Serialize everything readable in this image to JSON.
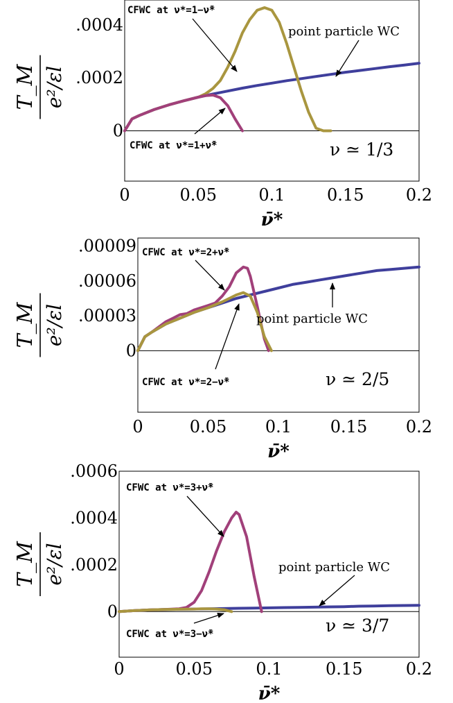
{
  "chart_data": [
    {
      "type": "line",
      "xlabel": "ν̄*",
      "ylabel": "T_M / (e²/εl)",
      "xlim": [
        0,
        0.2
      ],
      "ylim": [
        -0.00019,
        0.00052
      ],
      "xticks": [
        "0",
        "0.05",
        "0.1",
        "0.15",
        "0.2"
      ],
      "yticks": [
        {
          "value": 0,
          "label": "0"
        },
        {
          "value": 0.0002,
          "label": ".0002"
        },
        {
          "value": 0.0004,
          "label": ".0004"
        }
      ],
      "panel_label": "ν ≃ 1/3",
      "series": [
        {
          "color": "#3f3f9c",
          "x": [
            0,
            0.005,
            0.01,
            0.02,
            0.03,
            0.04,
            0.05,
            0.06,
            0.07,
            0.08,
            0.09,
            0.1,
            0.11,
            0.12,
            0.13,
            0.14,
            0.15,
            0.16,
            0.17,
            0.18,
            0.19,
            0.2
          ],
          "y": [
            0,
            4.5e-05,
            5.8e-05,
            8e-05,
            9.8e-05,
            0.000113,
            0.000127,
            0.000139,
            0.00015,
            0.000161,
            0.000171,
            0.00018,
            0.000189,
            0.000197,
            0.000205,
            0.000213,
            0.000221,
            0.000228,
            0.000235,
            0.000242,
            0.000248,
            0.000255
          ]
        },
        {
          "color": "#a9963f",
          "x": [
            0,
            0.005,
            0.01,
            0.02,
            0.03,
            0.04,
            0.05,
            0.055,
            0.06,
            0.065,
            0.07,
            0.075,
            0.08,
            0.085,
            0.09,
            0.095,
            0.1,
            0.105,
            0.11,
            0.115,
            0.12,
            0.125,
            0.13,
            0.135,
            0.14
          ],
          "y": [
            0,
            4.5e-05,
            5.8e-05,
            8e-05,
            9.8e-05,
            0.000113,
            0.000127,
            0.00014,
            0.00016,
            0.00019,
            0.00024,
            0.0003,
            0.00037,
            0.00042,
            0.000455,
            0.000465,
            0.000455,
            0.00041,
            0.00033,
            0.00024,
            0.00015,
            7e-05,
            1e-05,
            0,
            0
          ]
        },
        {
          "color": "#a1407a",
          "x": [
            0,
            0.005,
            0.01,
            0.02,
            0.03,
            0.04,
            0.05,
            0.055,
            0.06,
            0.065,
            0.07,
            0.075,
            0.08
          ],
          "y": [
            0,
            4.5e-05,
            5.8e-05,
            8e-05,
            9.8e-05,
            0.000113,
            0.000127,
            0.000133,
            0.000135,
            0.000125,
            9.5e-05,
            4.5e-05,
            0
          ]
        }
      ],
      "annotations": [
        {
          "text": "CFWC at ν*=1−ν̄*"
        },
        {
          "text": "point particle WC"
        },
        {
          "text": "CFWC at ν*=1+ν̄*"
        }
      ]
    },
    {
      "type": "line",
      "xlabel": "ν̄*",
      "ylabel": "T_M / (e²/εl)",
      "xlim": [
        0,
        0.2
      ],
      "ylim": [
        -5.3e-05,
        9.7e-05
      ],
      "xticks": [
        "0",
        "0.05",
        "0.1",
        "0.15",
        "0.2"
      ],
      "yticks": [
        {
          "value": 0,
          "label": "0"
        },
        {
          "value": 3e-05,
          "label": ".00003"
        },
        {
          "value": 6e-05,
          "label": ".00006"
        },
        {
          "value": 9e-05,
          "label": ".00009"
        }
      ],
      "panel_label": "ν ≃ 2/5",
      "series": [
        {
          "color": "#3f3f9c",
          "x": [
            0,
            0.005,
            0.01,
            0.02,
            0.03,
            0.04,
            0.05,
            0.06,
            0.07,
            0.08,
            0.09,
            0.1,
            0.11,
            0.12,
            0.13,
            0.14,
            0.15,
            0.16,
            0.17,
            0.18,
            0.19,
            0.2
          ],
          "y": [
            0,
            1.2e-05,
            1.6e-05,
            2.3e-05,
            2.8e-05,
            3.3e-05,
            3.7e-05,
            4.1e-05,
            4.5e-05,
            4.8e-05,
            5.1e-05,
            5.4e-05,
            5.7e-05,
            5.9e-05,
            6.1e-05,
            6.3e-05,
            6.5e-05,
            6.7e-05,
            6.9e-05,
            7e-05,
            7.1e-05,
            7.2e-05
          ]
        },
        {
          "color": "#a1407a",
          "x": [
            0,
            0.005,
            0.01,
            0.02,
            0.025,
            0.03,
            0.035,
            0.04,
            0.045,
            0.05,
            0.055,
            0.06,
            0.065,
            0.07,
            0.075,
            0.078,
            0.08,
            0.085,
            0.09,
            0.093
          ],
          "y": [
            0,
            1.2e-05,
            1.6e-05,
            2.5e-05,
            2.8e-05,
            3.1e-05,
            3.2e-05,
            3.5e-05,
            3.7e-05,
            3.9e-05,
            4.1e-05,
            4.7e-05,
            5.5e-05,
            6.7e-05,
            7.2e-05,
            7.1e-05,
            6.4e-05,
            3.8e-05,
            1e-05,
            0
          ]
        },
        {
          "color": "#a9963f",
          "x": [
            0,
            0.005,
            0.01,
            0.02,
            0.03,
            0.04,
            0.05,
            0.06,
            0.065,
            0.07,
            0.075,
            0.08,
            0.085,
            0.09,
            0.095
          ],
          "y": [
            0,
            1.2e-05,
            1.6e-05,
            2.3e-05,
            2.8e-05,
            3.3e-05,
            3.7e-05,
            4.2e-05,
            4.5e-05,
            4.8e-05,
            5e-05,
            4.7e-05,
            3.3e-05,
            1.2e-05,
            0
          ]
        }
      ],
      "annotations": [
        {
          "text": "CFWC at ν*=2+ν̄*"
        },
        {
          "text": "point particle WC"
        },
        {
          "text": "CFWC at ν*=2−ν̄*"
        }
      ]
    },
    {
      "type": "line",
      "xlabel": "ν̄*",
      "ylabel": "T_M / (e²/εl)",
      "xlim": [
        0,
        0.2
      ],
      "ylim": [
        -0.000195,
        0.0006
      ],
      "xticks": [
        "0",
        "0.05",
        "0.1",
        "0.15",
        "0.2"
      ],
      "yticks": [
        {
          "value": 0,
          "label": "0"
        },
        {
          "value": 0.0002,
          "label": ".0002"
        },
        {
          "value": 0.0004,
          "label": ".0004"
        },
        {
          "value": 0.0006,
          "label": ".0006"
        }
      ],
      "panel_label": "ν ≃ 3/7",
      "series": [
        {
          "color": "#3f3f9c",
          "x": [
            0,
            0.01,
            0.02,
            0.03,
            0.04,
            0.05,
            0.06,
            0.07,
            0.08,
            0.09,
            0.1,
            0.11,
            0.12,
            0.13,
            0.14,
            0.15,
            0.16,
            0.17,
            0.18,
            0.19,
            0.2
          ],
          "y": [
            0,
            4e-06,
            7e-06,
            9e-06,
            1e-05,
            1.1e-05,
            1.2e-05,
            1.3e-05,
            1.4e-05,
            1.5e-05,
            1.6e-05,
            1.7e-05,
            1.8e-05,
            1.9e-05,
            2e-05,
            2.1e-05,
            2.3e-05,
            2.4e-05,
            2.5e-05,
            2.6e-05,
            2.7e-05
          ]
        },
        {
          "color": "#a1407a",
          "x": [
            0,
            0.01,
            0.02,
            0.03,
            0.04,
            0.045,
            0.05,
            0.055,
            0.06,
            0.065,
            0.07,
            0.075,
            0.078,
            0.08,
            0.085,
            0.09,
            0.095
          ],
          "y": [
            0,
            4e-06,
            7e-06,
            9e-06,
            1.2e-05,
            1.8e-05,
            4e-05,
            9e-05,
            0.00017,
            0.00026,
            0.00034,
            0.0004,
            0.000425,
            0.000415,
            0.00032,
            0.00015,
            0
          ]
        },
        {
          "color": "#a9963f",
          "x": [
            0,
            0.01,
            0.02,
            0.03,
            0.04,
            0.05,
            0.055,
            0.06,
            0.065,
            0.07,
            0.075
          ],
          "y": [
            0,
            4e-06,
            7e-06,
            9e-06,
            1e-05,
            1.1e-05,
            1.2e-05,
            1.2e-05,
            1.1e-05,
            8e-06,
            0
          ]
        }
      ],
      "annotations": [
        {
          "text": "CFWC at ν*=3+ν̄*"
        },
        {
          "text": "point particle WC"
        },
        {
          "text": "CFWC at ν*=3−ν̄*"
        }
      ]
    }
  ]
}
